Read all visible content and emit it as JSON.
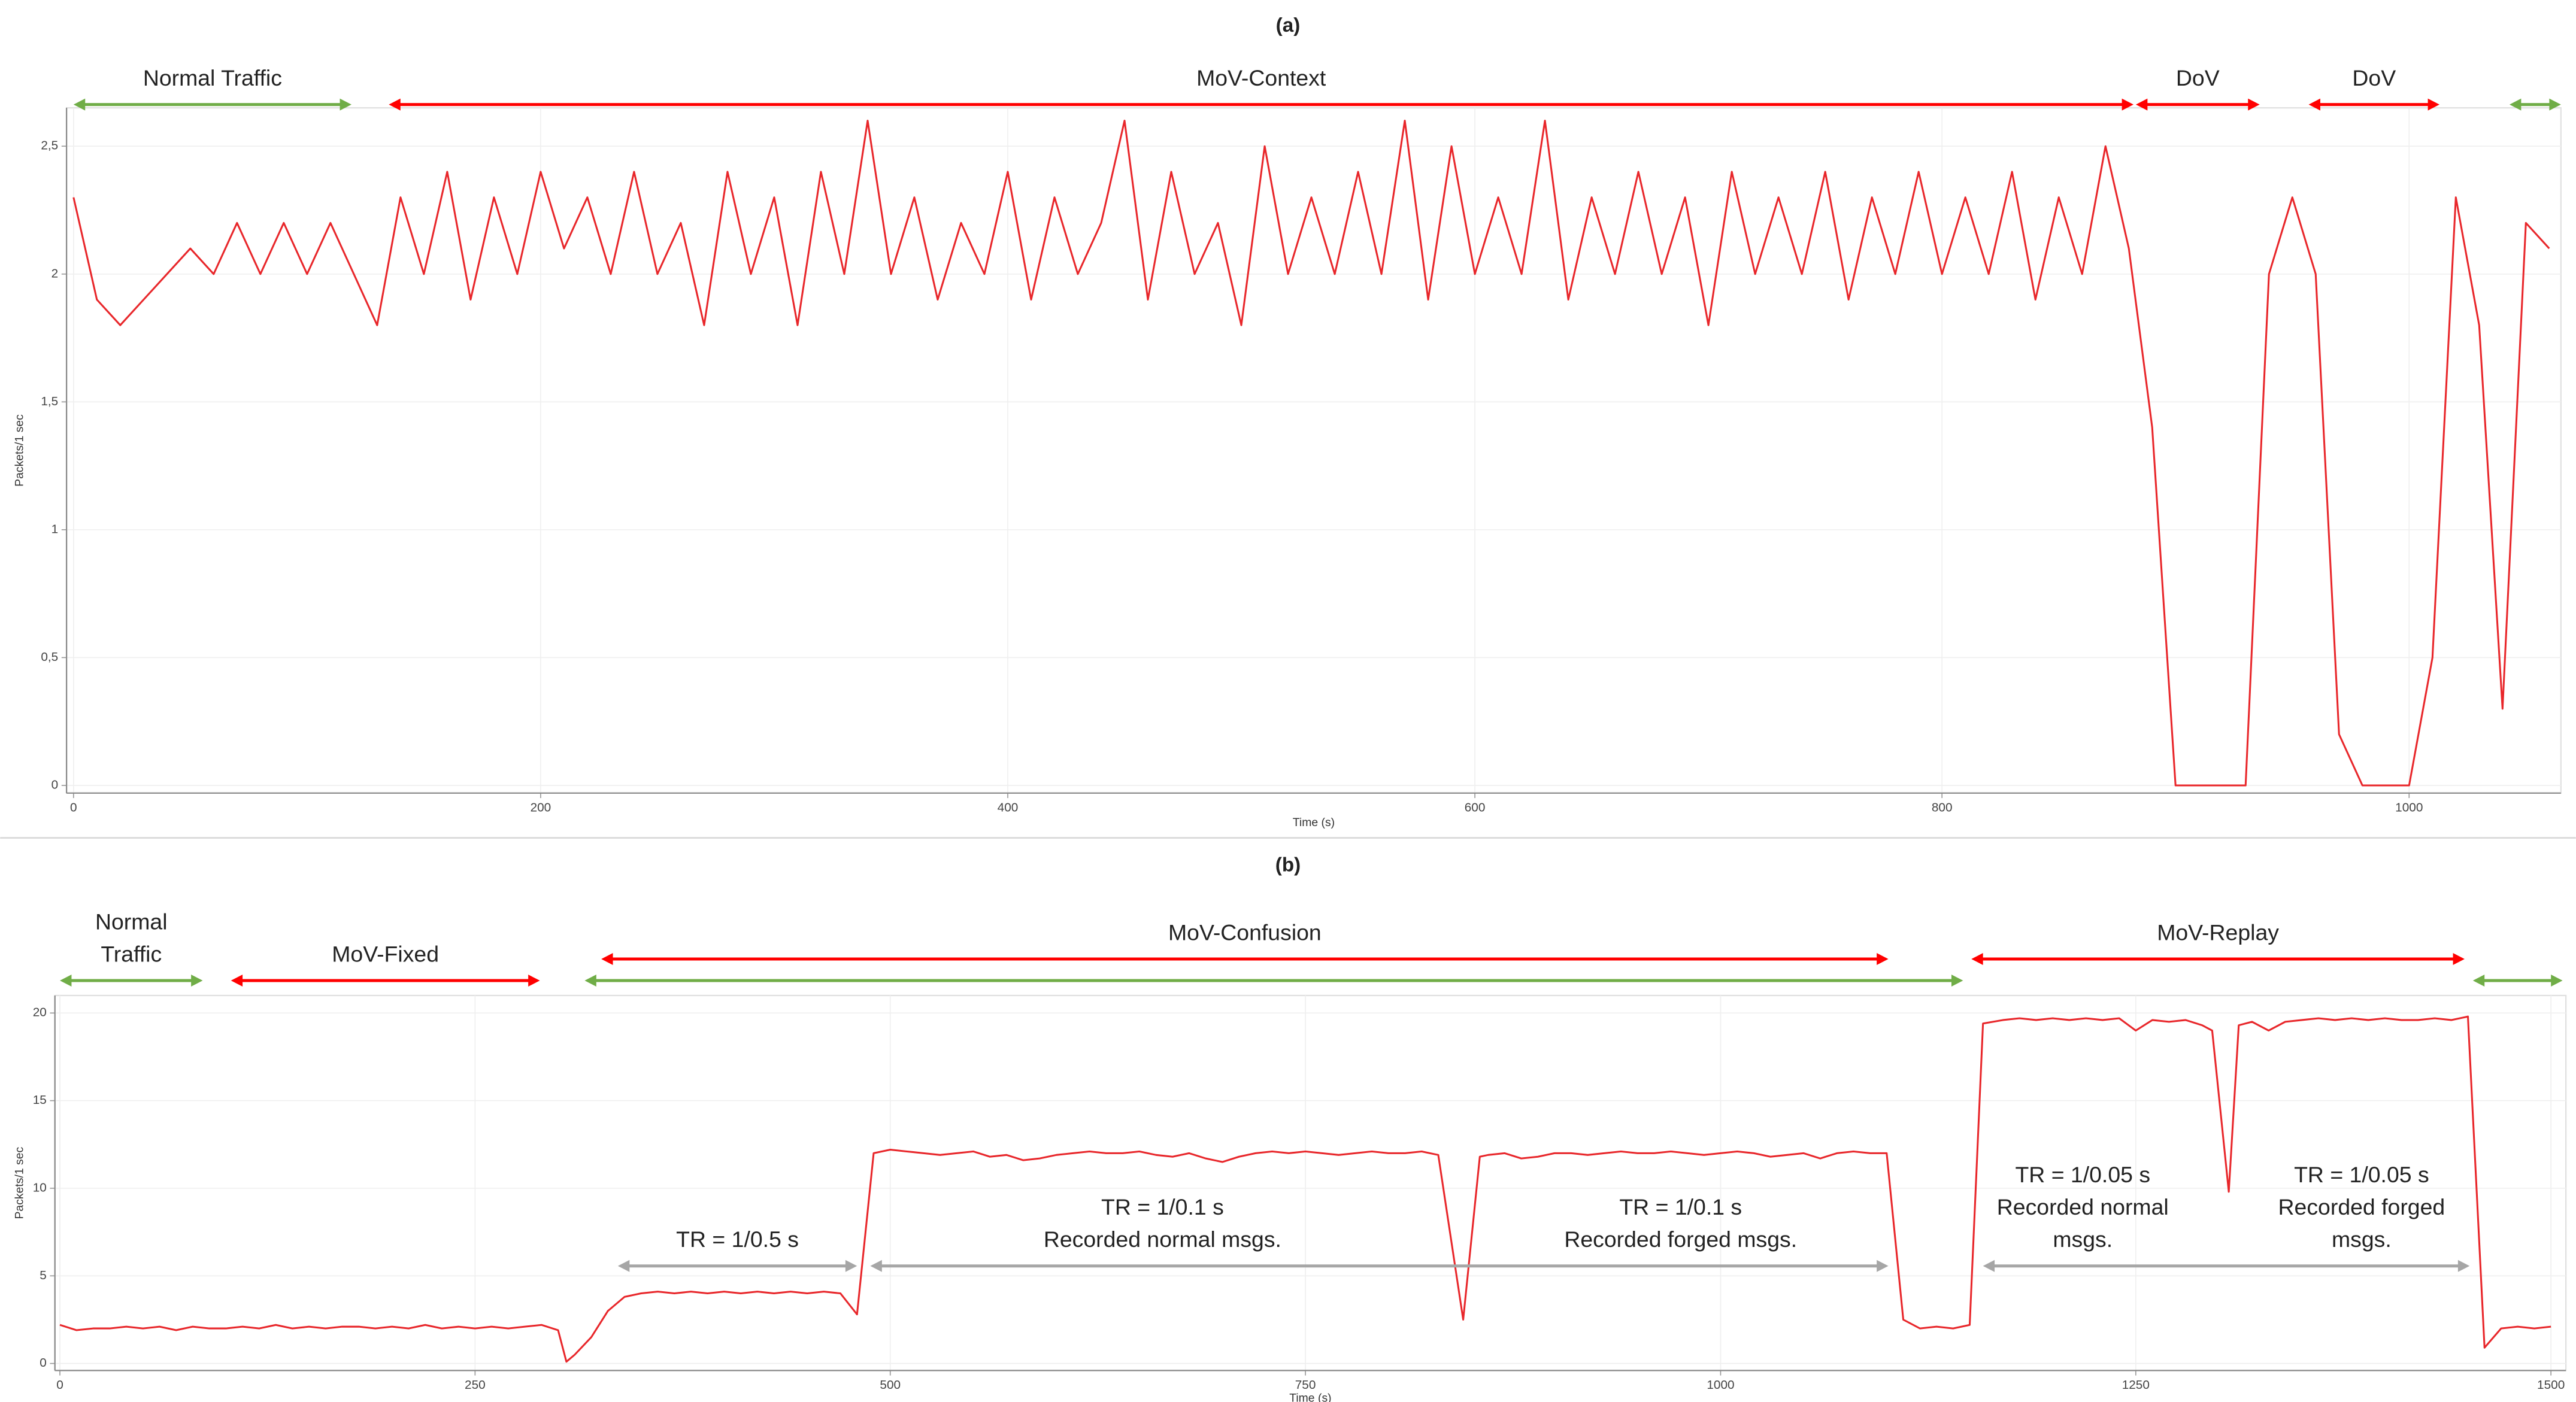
{
  "chart_data": [
    {
      "type": "line",
      "title": "(a)",
      "xlabel": "Time (s)",
      "ylabel": "Packets/1 sec",
      "color": "#e8262a",
      "grid": true,
      "xlim": [
        -3,
        1065
      ],
      "ylim": [
        -0.03,
        2.65
      ],
      "xticks": [
        0,
        200,
        400,
        600,
        800,
        1000
      ],
      "yticks": [
        0,
        {
          "value": 0.5,
          "label": "0,5"
        },
        1,
        {
          "value": 1.5,
          "label": "1,5"
        },
        2,
        {
          "value": 2.5,
          "label": "2,5"
        }
      ],
      "x": [
        0,
        10,
        20,
        30,
        40,
        50,
        60,
        70,
        80,
        90,
        100,
        110,
        120,
        130,
        140,
        150,
        160,
        170,
        180,
        190,
        200,
        210,
        220,
        230,
        240,
        250,
        260,
        270,
        280,
        290,
        300,
        310,
        320,
        330,
        340,
        350,
        360,
        370,
        380,
        390,
        400,
        410,
        420,
        430,
        440,
        450,
        460,
        470,
        480,
        490,
        500,
        510,
        520,
        530,
        540,
        550,
        560,
        570,
        580,
        590,
        600,
        610,
        620,
        630,
        640,
        650,
        660,
        670,
        680,
        690,
        700,
        710,
        720,
        730,
        740,
        750,
        760,
        770,
        780,
        790,
        800,
        810,
        820,
        830,
        840,
        850,
        860,
        870,
        880,
        890,
        900,
        910,
        920,
        930,
        940,
        950,
        960,
        970,
        980,
        990,
        1000,
        1010,
        1020,
        1030,
        1040,
        1050,
        1060
      ],
      "values": [
        2.3,
        1.9,
        1.8,
        1.9,
        2.0,
        2.1,
        2.0,
        2.2,
        2.0,
        2.2,
        2.0,
        2.2,
        2.0,
        1.8,
        2.3,
        2.0,
        2.4,
        1.9,
        2.3,
        2.0,
        2.4,
        2.1,
        2.3,
        2.0,
        2.4,
        2.0,
        2.2,
        1.8,
        2.4,
        2.0,
        2.3,
        1.8,
        2.4,
        2.0,
        2.6,
        2.0,
        2.3,
        1.9,
        2.2,
        2.0,
        2.4,
        1.9,
        2.3,
        2.0,
        2.2,
        2.6,
        1.9,
        2.4,
        2.0,
        2.2,
        1.8,
        2.5,
        2.0,
        2.3,
        2.0,
        2.4,
        2.0,
        2.6,
        1.9,
        2.5,
        2.0,
        2.3,
        2.0,
        2.6,
        1.9,
        2.3,
        2.0,
        2.4,
        2.0,
        2.3,
        1.8,
        2.4,
        2.0,
        2.3,
        2.0,
        2.4,
        1.9,
        2.3,
        2.0,
        2.4,
        2.0,
        2.3,
        2.0,
        2.4,
        1.9,
        2.3,
        2.0,
        2.5,
        2.1,
        1.4,
        0,
        0,
        0,
        0,
        2.0,
        2.3,
        2.0,
        0.2,
        0,
        0,
        0,
        0.5,
        2.3,
        1.8,
        0.3,
        2.2,
        2.1
      ],
      "ranges": [
        {
          "labels": [
            [
              "Normal Traffic"
            ]
          ],
          "start": 0,
          "end": 119,
          "color": "#70ad47"
        },
        {
          "labels": [
            [
              "MoV-Context"
            ]
          ],
          "start": 135,
          "end": 882,
          "color": "#ff0000"
        },
        {
          "labels": [
            [
              "DoV"
            ]
          ],
          "start": 883,
          "end": 936,
          "color": "#ff0000"
        },
        {
          "labels": [
            [
              "DoV"
            ]
          ],
          "start": 957,
          "end": 1013,
          "color": "#ff0000"
        },
        {
          "start": 1043,
          "end": 1065,
          "color": "#70ad47"
        }
      ]
    },
    {
      "type": "line",
      "title": "(b)",
      "xlabel": "Time (s)",
      "ylabel": "Packets/1 sec",
      "color": "#e8262a",
      "grid": true,
      "xlim": [
        -3,
        1509
      ],
      "ylim": [
        -0.4,
        21
      ],
      "xticks": [
        0,
        250,
        500,
        750,
        1000,
        1250,
        1500
      ],
      "yticks": [
        0,
        5,
        10,
        15,
        20
      ],
      "x": [
        0,
        10,
        20,
        30,
        40,
        50,
        60,
        70,
        80,
        90,
        100,
        110,
        120,
        130,
        140,
        150,
        160,
        170,
        180,
        190,
        200,
        210,
        220,
        230,
        240,
        250,
        260,
        270,
        280,
        290,
        300,
        305,
        310,
        320,
        330,
        340,
        350,
        360,
        370,
        380,
        390,
        400,
        410,
        420,
        430,
        440,
        450,
        460,
        470,
        480,
        490,
        500,
        510,
        520,
        530,
        540,
        550,
        560,
        570,
        580,
        590,
        600,
        610,
        620,
        630,
        640,
        650,
        660,
        670,
        680,
        690,
        700,
        710,
        720,
        730,
        740,
        750,
        760,
        770,
        780,
        790,
        800,
        810,
        820,
        830,
        845,
        855,
        860,
        870,
        880,
        890,
        900,
        910,
        920,
        930,
        940,
        950,
        960,
        970,
        980,
        990,
        1000,
        1010,
        1020,
        1030,
        1040,
        1050,
        1060,
        1070,
        1080,
        1090,
        1100,
        1110,
        1120,
        1130,
        1140,
        1150,
        1158,
        1170,
        1180,
        1190,
        1200,
        1210,
        1220,
        1230,
        1240,
        1250,
        1260,
        1270,
        1280,
        1290,
        1296,
        1306,
        1312,
        1320,
        1330,
        1340,
        1350,
        1360,
        1370,
        1380,
        1390,
        1400,
        1410,
        1420,
        1430,
        1440,
        1450,
        1460,
        1470,
        1480,
        1490,
        1500
      ],
      "values": [
        2.2,
        1.9,
        2.0,
        2.0,
        2.1,
        2.0,
        2.1,
        1.9,
        2.1,
        2.0,
        2.0,
        2.1,
        2.0,
        2.2,
        2.0,
        2.1,
        2.0,
        2.1,
        2.1,
        2.0,
        2.1,
        2.0,
        2.2,
        2.0,
        2.1,
        2.0,
        2.1,
        2.0,
        2.1,
        2.2,
        1.9,
        0.1,
        0.5,
        1.5,
        3.0,
        3.8,
        4.0,
        4.1,
        4.0,
        4.1,
        4.0,
        4.1,
        4.0,
        4.1,
        4.0,
        4.1,
        4.0,
        4.1,
        4.0,
        2.8,
        12.0,
        12.2,
        12.1,
        12.0,
        11.9,
        12.0,
        12.1,
        11.8,
        11.9,
        11.6,
        11.7,
        11.9,
        12.0,
        12.1,
        12.0,
        12.0,
        12.1,
        11.9,
        11.8,
        12.0,
        11.7,
        11.5,
        11.8,
        12.0,
        12.1,
        12.0,
        12.1,
        12.0,
        11.9,
        12.0,
        12.1,
        12.0,
        12.0,
        12.1,
        11.9,
        2.5,
        11.8,
        11.9,
        12.0,
        11.7,
        11.8,
        12.0,
        12.0,
        11.9,
        12.0,
        12.1,
        12.0,
        12.0,
        12.1,
        12.0,
        11.9,
        12.0,
        12.1,
        12.0,
        11.8,
        11.9,
        12.0,
        11.7,
        12.0,
        12.1,
        12.0,
        12.0,
        2.5,
        2.0,
        2.1,
        2.0,
        2.2,
        19.4,
        19.6,
        19.7,
        19.6,
        19.7,
        19.6,
        19.7,
        19.6,
        19.7,
        19.0,
        19.6,
        19.5,
        19.6,
        19.3,
        19.0,
        9.8,
        19.3,
        19.5,
        19.0,
        19.5,
        19.6,
        19.7,
        19.6,
        19.7,
        19.6,
        19.7,
        19.6,
        19.6,
        19.7,
        19.6,
        19.8,
        0.9,
        2.0,
        2.1,
        2.0,
        2.1
      ],
      "ranges": [
        {
          "labels": [
            [
              "Normal",
              "Traffic"
            ]
          ],
          "start": 0,
          "end": 86,
          "color": "#70ad47"
        },
        {
          "labels": [
            [
              "MoV-Fixed"
            ]
          ],
          "start": 103,
          "end": 289,
          "color": "#ff0000"
        },
        {
          "labels": [
            [
              "MoV-Confusion"
            ]
          ],
          "start": 326,
          "end": 1101,
          "color": "#ff0000"
        },
        {
          "start": 316,
          "end": 1146,
          "color": "#70ad47"
        },
        {
          "labels": [
            [
              "MoV-Replay"
            ]
          ],
          "start": 1151,
          "end": 1448,
          "color": "#ff0000"
        },
        {
          "start": 1453,
          "end": 1507,
          "color": "#70ad47"
        },
        {
          "labels": [
            [
              "TR = 1/0.5 s"
            ]
          ],
          "start": 336,
          "end": 480,
          "color": "#a6a6a6"
        },
        {
          "labels": [
            [
              "TR = 1/0.1 s",
              "Recorded normal msgs."
            ],
            [
              "TR = 1/0.1 s",
              "Recorded forged msgs."
            ]
          ],
          "start": 488,
          "end": 1101,
          "color": "#a6a6a6"
        },
        {
          "labels": [
            [
              "TR = 1/0.05 s",
              "Recorded normal",
              "msgs."
            ],
            [
              "TR = 1/0.05 s",
              "Recorded forged",
              "msgs."
            ]
          ],
          "start": 1158,
          "end": 1451,
          "color": "#a6a6a6"
        }
      ]
    }
  ]
}
